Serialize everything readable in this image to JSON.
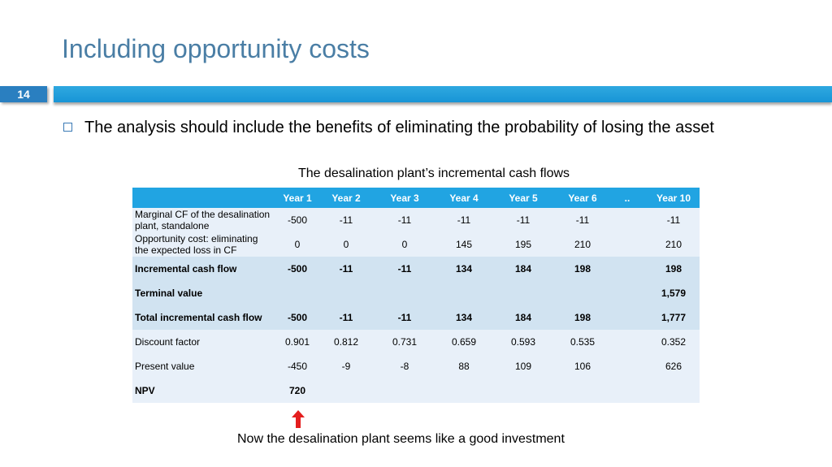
{
  "slide": {
    "title": "Including opportunity costs",
    "number": "14",
    "bullet": "The analysis should include the benefits of eliminating the probability of losing the asset",
    "caption": "The desalination plant’s incremental cash flows",
    "conclusion": "Now the desalination plant seems like a good investment",
    "arrow_icon": "up-arrow-icon",
    "colors": {
      "title": "#4a7ea5",
      "accent_bar": "#1895d6",
      "table_header": "#21a4e2",
      "arrow": "#e41e1e"
    }
  },
  "table": {
    "headers": [
      "",
      "Year 1",
      "Year 2",
      "Year 3",
      "Year 4",
      "Year 5",
      "Year 6",
      "..",
      "Year 10"
    ],
    "rows": [
      {
        "label": "Marginal CF of the desalination plant, standalone",
        "cells": [
          "-500",
          "-11",
          "-11",
          "-11",
          "-11",
          "-11",
          "",
          "-11"
        ]
      },
      {
        "label": "Opportunity cost: eliminating the expected loss in CF",
        "cells": [
          "0",
          "0",
          "0",
          "145",
          "195",
          "210",
          "",
          "210"
        ]
      },
      {
        "label": "Incremental cash flow",
        "cells": [
          "-500",
          "-11",
          "-11",
          "134",
          "184",
          "198",
          "",
          "198"
        ]
      },
      {
        "label": "Terminal value",
        "cells": [
          "",
          "",
          "",
          "",
          "",
          "",
          "",
          "1,579"
        ]
      },
      {
        "label": "Total incremental cash flow",
        "cells": [
          "-500",
          "-11",
          "-11",
          "134",
          "184",
          "198",
          "",
          "1,777"
        ]
      },
      {
        "label": "Discount factor",
        "cells": [
          "0.901",
          "0.812",
          "0.731",
          "0.659",
          "0.593",
          "0.535",
          "",
          "0.352"
        ]
      },
      {
        "label": "Present value",
        "cells": [
          "-450",
          "-9",
          "-8",
          "88",
          "109",
          "106",
          "",
          "626"
        ]
      },
      {
        "label": "NPV",
        "cells": [
          "720",
          "",
          "",
          "",
          "",
          "",
          "",
          ""
        ]
      }
    ]
  }
}
